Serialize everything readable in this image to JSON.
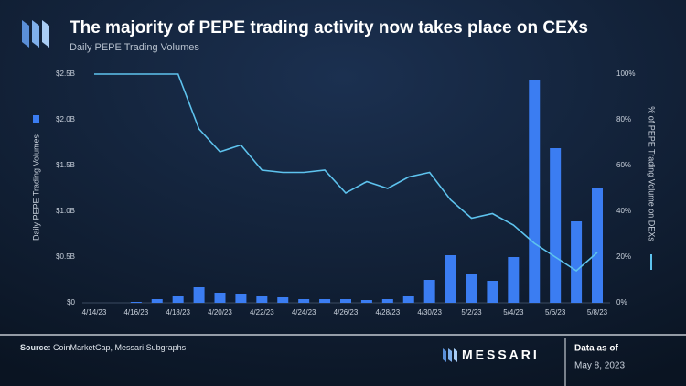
{
  "chart_data": {
    "type": "combo",
    "title": "The majority of PEPE trading activity now takes place on CEXs",
    "subtitle": "Daily PEPE Trading Volumes",
    "categories": [
      "4/14/23",
      null,
      "4/16/23",
      null,
      "4/18/23",
      null,
      "4/20/23",
      null,
      "4/22/23",
      null,
      "4/24/23",
      null,
      "4/26/23",
      null,
      "4/28/23",
      null,
      "4/30/23",
      null,
      "5/2/23",
      null,
      "5/4/23",
      null,
      "5/6/23",
      null,
      "5/8/23"
    ],
    "series": [
      {
        "name": "Daily PEPE Trading Volumes",
        "type": "bar",
        "color": "#3b7df2",
        "values": [
          0,
          0,
          0.01,
          0.04,
          0.07,
          0.17,
          0.11,
          0.1,
          0.07,
          0.06,
          0.04,
          0.04,
          0.04,
          0.03,
          0.04,
          0.07,
          0.25,
          0.52,
          0.31,
          0.24,
          0.5,
          2.43,
          1.69,
          0.89,
          1.25
        ]
      },
      {
        "name": "% of PEPE Trading Volume on DEXs",
        "type": "line",
        "axis": "y2",
        "color": "#5ec3ee",
        "values": [
          100,
          100,
          100,
          100,
          100,
          76,
          66,
          69,
          58,
          57,
          57,
          58,
          48,
          53,
          50,
          55,
          57,
          45,
          37,
          39,
          34,
          26,
          20,
          14,
          22
        ]
      }
    ],
    "ylim": [
      0,
      2.5
    ],
    "yticks": [
      {
        "value": 0,
        "label": "$0"
      },
      {
        "value": 0.5,
        "label": "$0.5B"
      },
      {
        "value": 1,
        "label": "$1.0B"
      },
      {
        "value": 1.5,
        "label": "$1.5B"
      },
      {
        "value": 2,
        "label": "$2.0B"
      },
      {
        "value": 2.5,
        "label": "$2.5B"
      }
    ],
    "y2lim": [
      0,
      100
    ],
    "y2ticks": [
      {
        "value": 0,
        "label": "0%"
      },
      {
        "value": 20,
        "label": "20%"
      },
      {
        "value": 40,
        "label": "40%"
      },
      {
        "value": 60,
        "label": "60%"
      },
      {
        "value": 80,
        "label": "80%"
      },
      {
        "value": 100,
        "label": "100%"
      }
    ]
  },
  "footer": {
    "source_label": "Source:",
    "source": "CoinMarketCap, Messari Subgraphs",
    "brand": "MESSARI",
    "data_as_of": "Data as of",
    "date": "May 8, 2023"
  }
}
